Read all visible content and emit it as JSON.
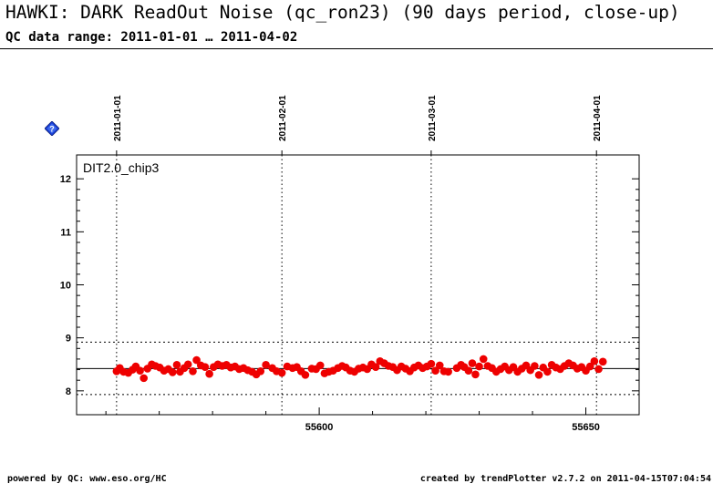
{
  "header": {
    "title": "HAWKI: DARK ReadOut Noise (qc_ron23) (90 days period, close-up)",
    "subtitle": "QC data range: 2011-01-01 … 2011-04-02"
  },
  "footer": {
    "left": "powered by QC: www.eso.org/HC",
    "right": "created by trendPlotter v2.7.2 on 2011-04-15T07:04:54"
  },
  "help_icon": "help-diamond-icon",
  "chart_data": {
    "type": "scatter",
    "panel_label": "DIT2.0_chip3",
    "xlim": [
      55554.5,
      55660
    ],
    "ylim": [
      7.55,
      12.45
    ],
    "xticks": [
      55600,
      55650
    ],
    "yticks": [
      8,
      9,
      10,
      11,
      12
    ],
    "date_markers": [
      {
        "mjd": 55562,
        "label": "2011-01-01"
      },
      {
        "mjd": 55593,
        "label": "2011-02-01"
      },
      {
        "mjd": 55621,
        "label": "2011-03-01"
      },
      {
        "mjd": 55652,
        "label": "2011-04-01"
      }
    ],
    "reference_line": 8.42,
    "threshold_lines": [
      7.93,
      8.92
    ],
    "grid": "dotted vertical at month starts",
    "color": "#ee0000",
    "series": [
      {
        "x": [
          55562.0,
          55562.6,
          55563.3,
          55564.2,
          55565.0,
          55565.6,
          55566.4,
          55567.1,
          55567.8,
          55568.6,
          55569.3,
          55570.1,
          55570.9,
          55571.7,
          55572.5,
          55573.3,
          55573.9,
          55574.7,
          55575.4,
          55576.3,
          55577.0,
          55577.8,
          55578.6,
          55579.4,
          55580.2,
          55581.0,
          55581.8,
          55582.6,
          55583.4,
          55584.2,
          55585.0,
          55585.8,
          55586.6,
          55587.4,
          55588.2,
          55589.0,
          55590.0,
          55591.2,
          55592.0,
          55593.0,
          55594.0,
          55595.0,
          55595.8,
          55596.6,
          55597.4,
          55598.6,
          55599.4,
          55600.2,
          55601.0,
          55601.8,
          55602.6,
          55603.5,
          55604.3,
          55605.0,
          55605.8,
          55606.6,
          55607.4,
          55608.2,
          55609.0,
          55609.8,
          55610.6,
          55611.4,
          55612.2,
          55613.0,
          55613.8,
          55614.6,
          55615.4,
          55616.2,
          55617.0,
          55617.8,
          55618.6,
          55619.4,
          55620.2,
          55621.0,
          55621.8,
          55622.6,
          55623.4,
          55624.2,
          55625.8,
          55626.6,
          55627.2,
          55628.0,
          55628.7,
          55629.3,
          55630.0,
          55630.8,
          55631.6,
          55632.4,
          55633.2,
          55634.0,
          55634.8,
          55635.6,
          55636.4,
          55637.2,
          55638.0,
          55638.8,
          55639.6,
          55640.4,
          55641.2,
          55642.0,
          55642.8,
          55643.6,
          55644.4,
          55645.2,
          55646.0,
          55646.8,
          55647.6,
          55648.4,
          55649.2,
          55650.0,
          55650.8,
          55651.6,
          55652.4,
          55653.2
        ],
        "y": [
          8.37,
          8.43,
          8.36,
          8.34,
          8.4,
          8.46,
          8.38,
          8.24,
          8.42,
          8.5,
          8.47,
          8.44,
          8.38,
          8.41,
          8.35,
          8.49,
          8.36,
          8.43,
          8.5,
          8.37,
          8.58,
          8.48,
          8.45,
          8.32,
          8.45,
          8.5,
          8.47,
          8.49,
          8.44,
          8.46,
          8.41,
          8.43,
          8.39,
          8.36,
          8.31,
          8.37,
          8.49,
          8.43,
          8.37,
          8.34,
          8.46,
          8.43,
          8.45,
          8.37,
          8.3,
          8.42,
          8.41,
          8.48,
          8.33,
          8.36,
          8.38,
          8.43,
          8.47,
          8.44,
          8.38,
          8.36,
          8.42,
          8.44,
          8.41,
          8.5,
          8.45,
          8.56,
          8.52,
          8.47,
          8.45,
          8.39,
          8.46,
          8.42,
          8.37,
          8.44,
          8.48,
          8.43,
          8.46,
          8.51,
          8.38,
          8.48,
          8.37,
          8.36,
          8.43,
          8.49,
          8.45,
          8.38,
          8.52,
          8.31,
          8.46,
          8.6,
          8.47,
          8.43,
          8.36,
          8.41,
          8.46,
          8.39,
          8.45,
          8.36,
          8.42,
          8.48,
          8.39,
          8.47,
          8.3,
          8.44,
          8.36,
          8.49,
          8.44,
          8.41,
          8.47,
          8.52,
          8.48,
          8.42,
          8.45,
          8.38,
          8.46,
          8.56,
          8.41,
          8.55
        ]
      }
    ]
  }
}
